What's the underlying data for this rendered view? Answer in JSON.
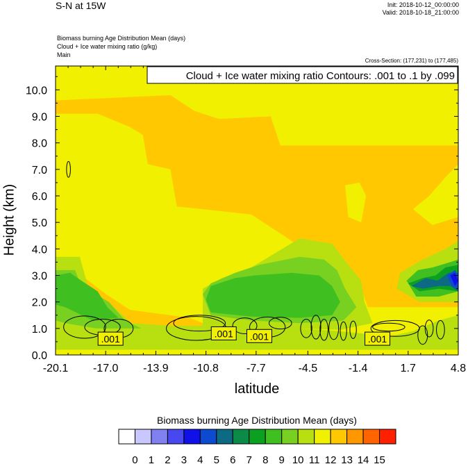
{
  "header": {
    "title": "S-N at 15W",
    "init": "Init: 2018-10-12_00:00:00",
    "valid": "Valid: 2018-10-18_21:00:00",
    "field1": "Biomass burning Age Distribution Mean   (days)",
    "field2": "Cloud + Ice water mixing ratio   (g/kg)",
    "field3": "Main",
    "cross_section": "Cross-Section: (177,231) to (177,485)"
  },
  "chart_data": {
    "type": "heatmap",
    "xlabel": "latitude",
    "ylabel": "Height (km)",
    "xlim": [
      -20.1,
      4.8
    ],
    "ylim": [
      0.0,
      10.9
    ],
    "x_ticks": [
      "-20.1",
      "-17.0",
      "-13.9",
      "-10.8",
      "-7.7",
      "-4.5",
      "-1.4",
      "1.7",
      "4.8"
    ],
    "y_ticks": [
      "0.0",
      "1.0",
      "2.0",
      "3.0",
      "4.0",
      "5.0",
      "6.0",
      "7.0",
      "8.0",
      "9.0",
      "10.0"
    ],
    "contour_title": "Cloud + Ice water mixing ratio Contours: .001 to .1 by .099",
    "contour_labels": [
      {
        "text": ".001",
        "x": -16.7,
        "y": 0.6
      },
      {
        "text": ".001",
        "x": -9.7,
        "y": 0.8
      },
      {
        "text": ".001",
        "x": -7.5,
        "y": 0.7
      },
      {
        "text": ".001",
        "x": -0.2,
        "y": 0.6
      }
    ],
    "colorbar": {
      "title": "Biomass burning Age Distribution Mean  (days)",
      "labels": [
        "0",
        "1",
        "2",
        "3",
        "4",
        "5",
        "6",
        "7",
        "8",
        "9",
        "10",
        "11",
        "12",
        "13",
        "14",
        "15"
      ],
      "colors": [
        "#ffffff",
        "#c8c8ff",
        "#8080f0",
        "#4848f0",
        "#1010e8",
        "#0c4ad0",
        "#0c6a84",
        "#0c8a48",
        "#0ca020",
        "#40c020",
        "#78d020",
        "#b8e010",
        "#f0f000",
        "#ffc800",
        "#ff9800",
        "#ff6400",
        "#ff2000"
      ]
    },
    "background_level": 11.5,
    "regions": [
      {
        "level": 12.5,
        "points": [
          [
            -20.1,
            9.6
          ],
          [
            -13.0,
            9.8
          ],
          [
            -11.5,
            9.2
          ],
          [
            -10.0,
            8.9
          ],
          [
            -6.8,
            9.0
          ],
          [
            -6.2,
            7.9
          ],
          [
            4.8,
            7.9
          ],
          [
            4.8,
            1.8
          ],
          [
            -0.8,
            1.8
          ],
          [
            -1.2,
            2.5
          ],
          [
            -3.5,
            3.0
          ],
          [
            -4.0,
            3.6
          ],
          [
            -5.5,
            4.3
          ],
          [
            -8.0,
            5.3
          ],
          [
            -11.0,
            5.5
          ],
          [
            -12.6,
            5.6
          ],
          [
            -13.0,
            7.0
          ],
          [
            -14.4,
            7.2
          ],
          [
            -14.7,
            8.3
          ],
          [
            -15.5,
            8.6
          ],
          [
            -17.5,
            9.1
          ],
          [
            -20.1,
            9.1
          ]
        ]
      },
      {
        "level": 12.5,
        "points": [
          [
            -20.1,
            0.2
          ],
          [
            4.8,
            0.2
          ],
          [
            4.8,
            0.7
          ],
          [
            -9.8,
            0.9
          ],
          [
            -11.8,
            1.4
          ],
          [
            -15.5,
            1.7
          ],
          [
            -17.0,
            2.3
          ],
          [
            -18.5,
            3.0
          ],
          [
            -20.1,
            3.0
          ]
        ]
      },
      {
        "level": 11.5,
        "points": [
          [
            -13.2,
            3.3
          ],
          [
            -12.1,
            3.6
          ],
          [
            -10.0,
            4.4
          ],
          [
            -7.5,
            4.2
          ],
          [
            -5.7,
            3.2
          ],
          [
            -10.0,
            2.5
          ],
          [
            -12.0,
            2.3
          ]
        ]
      },
      {
        "level": 11.5,
        "points": [
          [
            2.0,
            5.5
          ],
          [
            3.0,
            6.0
          ],
          [
            4.0,
            6.7
          ],
          [
            4.8,
            7.2
          ],
          [
            4.8,
            5.2
          ],
          [
            3.2,
            4.9
          ]
        ]
      },
      {
        "level": 11.5,
        "points": [
          [
            -2.2,
            6.4
          ],
          [
            -1.3,
            6.5
          ],
          [
            -0.9,
            6.0
          ],
          [
            -1.2,
            5.0
          ],
          [
            -2.0,
            5.2
          ]
        ]
      },
      {
        "level": 10.5,
        "points": [
          [
            -20.1,
            3.7
          ],
          [
            -18.6,
            3.7
          ],
          [
            -18.1,
            2.6
          ],
          [
            -16.3,
            1.7
          ],
          [
            -15.4,
            1.2
          ],
          [
            -13.0,
            1.1
          ],
          [
            -10.0,
            1.1
          ],
          [
            -8.0,
            1.1
          ],
          [
            -5.0,
            1.0
          ],
          [
            -2.6,
            0.9
          ],
          [
            -1.0,
            0.8
          ],
          [
            0.6,
            0.7
          ],
          [
            2.0,
            0.9
          ],
          [
            3.6,
            1.3
          ],
          [
            4.8,
            1.5
          ],
          [
            4.8,
            0.2
          ],
          [
            -20.1,
            0.2
          ]
        ]
      },
      {
        "level": 10.5,
        "points": [
          [
            -11.0,
            2.5
          ],
          [
            -9.8,
            2.9
          ],
          [
            -8.0,
            3.3
          ],
          [
            -5.0,
            4.4
          ],
          [
            -3.0,
            4.2
          ],
          [
            -2.0,
            3.4
          ],
          [
            -1.2,
            2.8
          ],
          [
            -1.0,
            2.0
          ],
          [
            -0.5,
            1.2
          ],
          [
            -2.5,
            0.95
          ],
          [
            -5.0,
            1.0
          ],
          [
            -9.0,
            1.0
          ],
          [
            -11.0,
            1.1
          ]
        ]
      },
      {
        "level": 10.5,
        "points": [
          [
            1.0,
            2.5
          ],
          [
            1.2,
            3.1
          ],
          [
            2.6,
            3.6
          ],
          [
            4.0,
            4.0
          ],
          [
            4.8,
            4.3
          ],
          [
            4.8,
            2.0
          ],
          [
            2.4,
            2.0
          ]
        ]
      },
      {
        "level": 9.5,
        "points": [
          [
            -20.1,
            3.2
          ],
          [
            -18.9,
            3.2
          ],
          [
            -18.5,
            2.6
          ],
          [
            -16.8,
            2.0
          ],
          [
            -15.8,
            1.3
          ],
          [
            -14.8,
            1.0
          ],
          [
            -17.6,
            1.0
          ],
          [
            -19.5,
            1.2
          ],
          [
            -20.1,
            1.3
          ]
        ]
      },
      {
        "level": 9.5,
        "points": [
          [
            -11.0,
            2.3
          ],
          [
            -10.5,
            2.7
          ],
          [
            -9.0,
            3.1
          ],
          [
            -7.5,
            3.4
          ],
          [
            -5.0,
            3.7
          ],
          [
            -3.5,
            3.6
          ],
          [
            -2.7,
            3.2
          ],
          [
            -2.2,
            2.5
          ],
          [
            -1.5,
            1.8
          ],
          [
            -2.3,
            1.3
          ],
          [
            -5.0,
            1.2
          ],
          [
            -8.0,
            1.3
          ],
          [
            -10.5,
            1.5
          ]
        ]
      },
      {
        "level": 8.5,
        "points": [
          [
            -20.1,
            3.0
          ],
          [
            -19.2,
            3.1
          ],
          [
            -18.5,
            2.8
          ],
          [
            -17.5,
            2.4
          ],
          [
            -16.9,
            1.8
          ],
          [
            -16.2,
            1.4
          ],
          [
            -17.8,
            1.3
          ],
          [
            -19.5,
            1.8
          ],
          [
            -20.1,
            1.9
          ]
        ]
      },
      {
        "level": 8.5,
        "points": [
          [
            -10.8,
            2.1
          ],
          [
            -10.5,
            2.6
          ],
          [
            -9.0,
            2.9
          ],
          [
            -7.8,
            3.0
          ],
          [
            -5.5,
            3.1
          ],
          [
            -3.8,
            3.0
          ],
          [
            -3.0,
            2.6
          ],
          [
            -2.5,
            2.0
          ],
          [
            -3.0,
            1.5
          ],
          [
            -5.0,
            1.4
          ],
          [
            -8.0,
            1.45
          ],
          [
            -10.5,
            1.6
          ]
        ]
      },
      {
        "level": 8.5,
        "points": [
          [
            1.6,
            2.8
          ],
          [
            2.3,
            3.2
          ],
          [
            3.2,
            3.3
          ],
          [
            4.3,
            3.5
          ],
          [
            4.8,
            3.6
          ],
          [
            4.8,
            2.4
          ],
          [
            3.6,
            2.2
          ],
          [
            2.2,
            2.2
          ]
        ]
      },
      {
        "level": 7.5,
        "points": [
          [
            1.7,
            2.7
          ],
          [
            2.6,
            2.9
          ],
          [
            3.4,
            3.0
          ],
          [
            4.0,
            3.3
          ],
          [
            4.8,
            3.4
          ],
          [
            4.8,
            2.4
          ],
          [
            3.6,
            2.5
          ],
          [
            2.4,
            2.4
          ]
        ]
      },
      {
        "level": 5.5,
        "points": [
          [
            1.9,
            2.6
          ],
          [
            2.8,
            2.9
          ],
          [
            3.5,
            2.8
          ],
          [
            4.2,
            3.1
          ],
          [
            4.8,
            3.1
          ],
          [
            4.8,
            2.4
          ],
          [
            4.3,
            2.6
          ],
          [
            3.6,
            2.6
          ],
          [
            2.6,
            2.5
          ]
        ]
      },
      {
        "level": 4.5,
        "points": [
          [
            4.1,
            3.0
          ],
          [
            4.6,
            3.2
          ],
          [
            4.8,
            3.0
          ],
          [
            4.8,
            2.5
          ],
          [
            4.4,
            2.6
          ]
        ]
      },
      {
        "level": 3.5,
        "points": [
          [
            4.3,
            3.0
          ],
          [
            4.6,
            3.1
          ],
          [
            4.8,
            2.8
          ],
          [
            4.6,
            2.6
          ]
        ]
      }
    ],
    "contours": [
      {
        "cx": -18.3,
        "cy": 1.05,
        "rx": 1.3,
        "ry": 0.42
      },
      {
        "cx": -17.2,
        "cy": 1.05,
        "rx": 1.1,
        "ry": 0.3
      },
      {
        "cx": -16.2,
        "cy": 1.0,
        "rx": 0.9,
        "ry": 0.35
      },
      {
        "cx": -19.3,
        "cy": 7.0,
        "rx": 0.12,
        "ry": 0.3
      },
      {
        "cx": -11.2,
        "cy": 1.2,
        "rx": 1.6,
        "ry": 0.3
      },
      {
        "cx": -11.4,
        "cy": 1.0,
        "rx": 1.85,
        "ry": 0.45
      },
      {
        "cx": -8.4,
        "cy": 1.1,
        "rx": 0.75,
        "ry": 0.3
      },
      {
        "cx": -7.0,
        "cy": 1.05,
        "rx": 1.1,
        "ry": 0.38
      },
      {
        "cx": -6.2,
        "cy": 1.2,
        "rx": 0.7,
        "ry": 0.22
      },
      {
        "cx": -4.6,
        "cy": 1.0,
        "rx": 0.35,
        "ry": 0.35
      },
      {
        "cx": -4.0,
        "cy": 1.05,
        "rx": 0.3,
        "ry": 0.45
      },
      {
        "cx": -3.5,
        "cy": 0.95,
        "rx": 0.25,
        "ry": 0.4
      },
      {
        "cx": -2.9,
        "cy": 1.0,
        "rx": 0.3,
        "ry": 0.42
      },
      {
        "cx": -2.3,
        "cy": 0.9,
        "rx": 0.2,
        "ry": 0.35
      },
      {
        "cx": -1.7,
        "cy": 0.95,
        "rx": 0.2,
        "ry": 0.33
      },
      {
        "cx": 0.5,
        "cy": 1.05,
        "rx": 1.0,
        "ry": 0.15
      },
      {
        "cx": 0.9,
        "cy": 1.0,
        "rx": 1.5,
        "ry": 0.3
      },
      {
        "cx": 2.6,
        "cy": 0.75,
        "rx": 0.3,
        "ry": 0.35
      },
      {
        "cx": 3.0,
        "cy": 1.0,
        "rx": 0.25,
        "ry": 0.32
      },
      {
        "cx": 3.7,
        "cy": 0.95,
        "rx": 0.25,
        "ry": 0.35
      }
    ]
  }
}
